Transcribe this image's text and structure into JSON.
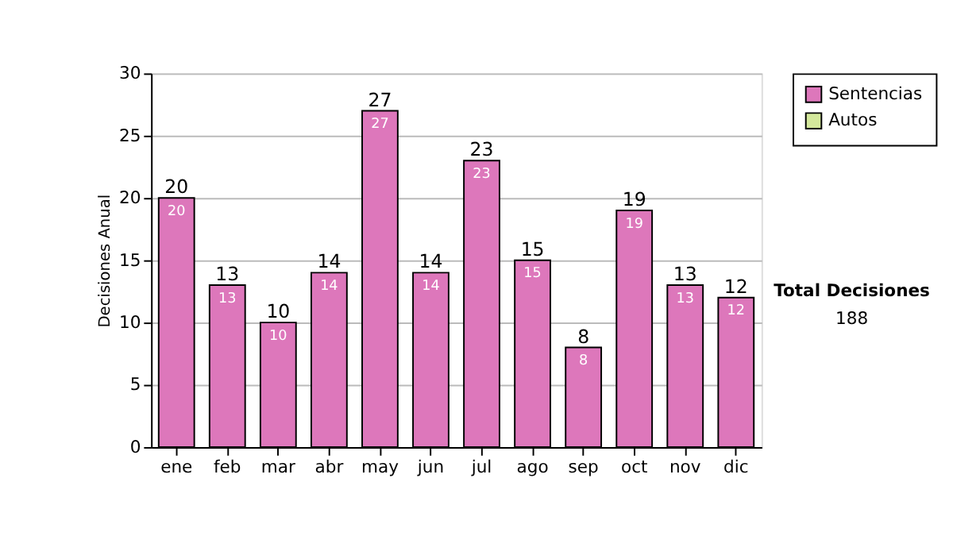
{
  "chart_data": {
    "type": "bar",
    "ylabel": "Decisiones Anual",
    "categories": [
      "ene",
      "feb",
      "mar",
      "abr",
      "may",
      "jun",
      "jul",
      "ago",
      "sep",
      "oct",
      "nov",
      "dic"
    ],
    "series": [
      {
        "name": "Sentencias",
        "color": "#dd77bb",
        "values": [
          20,
          13,
          10,
          14,
          27,
          14,
          23,
          15,
          8,
          19,
          13,
          12
        ],
        "value_labels": [
          "20",
          "13",
          "10",
          "14",
          "27",
          "14",
          "23",
          "15",
          "8",
          "19",
          "13",
          "12"
        ]
      },
      {
        "name": "Autos",
        "color": "#d4e89c",
        "values": [
          null,
          null,
          null,
          null,
          null,
          null,
          null,
          null,
          null,
          null,
          null,
          null
        ]
      }
    ],
    "totals": [
      "20",
      "13",
      "10",
      "14",
      "27",
      "14",
      "23",
      "15",
      "8",
      "19",
      "13",
      "12"
    ],
    "ylim": [
      0,
      30
    ],
    "yticks": [
      0,
      5,
      10,
      15,
      20,
      25,
      30
    ],
    "grid": "y",
    "legend": "right",
    "annotations": [
      "Total Decisiones",
      "188"
    ]
  }
}
